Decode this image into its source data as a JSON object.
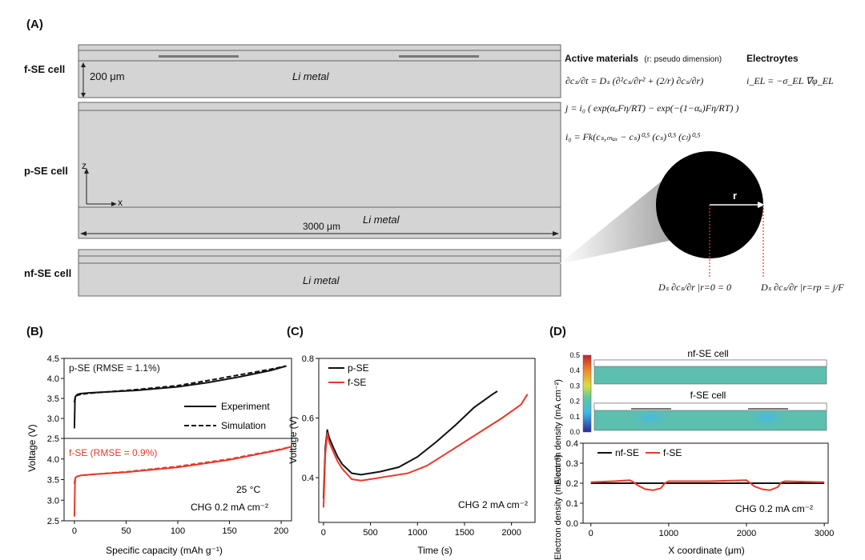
{
  "panel_a": {
    "letter": "(A)",
    "cells": {
      "f_se": "f-SE cell",
      "p_se": "p-SE cell",
      "nf_se": "nf-SE cell"
    },
    "li_metal": "Li metal",
    "dim_200": "200 μm",
    "dim_3000": "3000 μm",
    "axis_z": "z",
    "axis_x": "x",
    "active_materials_title": "Active materials",
    "active_materials_note": "(r: pseudo dimension)",
    "electrolytes_title": "Electroytes",
    "eq_diffusion": "∂cₛ/∂t = Dₛ (∂²cₛ/∂r² + (2/r) ∂cₛ/∂r)",
    "eq_butler_volmer": "j = i₀ ( exp(αₐFη/RT) − exp(−(1−αₐ)Fη/RT) )",
    "eq_exchange_current": "i₀ = Fk(cₛ,ₘₐₓ − cₛ)⁰·⁵ (cₛ)⁰·⁵ (cₗ)⁰·⁵",
    "eq_electrolyte": "i_EL = −σ_EL ∇φ_EL",
    "particle_radius": "r",
    "bc_center": "Dₛ ∂cₛ/∂r |r=0 = 0",
    "bc_surface": "Dₛ ∂cₛ/∂r |r=rp = j/F"
  },
  "panel_b": {
    "letter": "(B)",
    "ylabel": "Voltage (V)",
    "xlabel": "Specific capacity (mAh g⁻¹)",
    "top_label": "p-SE (RMSE = 1.1%)",
    "bottom_label": "f-SE (RMSE = 0.9%)",
    "legend_experiment": "Experiment",
    "legend_simulation": "Simulation",
    "temp": "25 °C",
    "condition": "CHG 0.2 mA cm⁻²",
    "colors": {
      "p_se": "#111111",
      "f_se": "#e8392b"
    }
  },
  "panel_c": {
    "letter": "(C)",
    "ylabel": "Voltage (V)",
    "xlabel": "Time (s)",
    "legend_p": "p-SE",
    "legend_f": "f-SE",
    "condition": "CHG 2 mA cm⁻²"
  },
  "panel_d": {
    "letter": "(D)",
    "map_top_label": "nf-SE cell",
    "map_bottom_label": "f-SE cell",
    "colorbar_label": "Electron density (mA cm⁻²)",
    "ylabel": "Electron density (mA cm⁻²)",
    "xlabel": "X coordinate (μm)",
    "legend_nf": "nf-SE",
    "legend_f": "f-SE",
    "condition": "CHG 0.2 mA cm⁻²"
  },
  "chart_data": [
    {
      "id": "B-top",
      "type": "line",
      "xlim": [
        -10,
        210
      ],
      "ylim": [
        2.5,
        4.5
      ],
      "xticks": [
        0,
        50,
        100,
        150,
        200
      ],
      "yticks": [
        2.5,
        3.0,
        3.5,
        4.0,
        4.5
      ],
      "series": [
        {
          "name": "Experiment",
          "style": "solid",
          "color": "#111111",
          "x": [
            0,
            0.5,
            1,
            3,
            6,
            15,
            30,
            60,
            100,
            130,
            160,
            190,
            205
          ],
          "y": [
            2.75,
            3.45,
            3.55,
            3.6,
            3.62,
            3.64,
            3.66,
            3.7,
            3.79,
            3.9,
            4.04,
            4.2,
            4.31
          ]
        },
        {
          "name": "Simulation",
          "style": "dashed",
          "color": "#111111",
          "x": [
            0,
            0.5,
            1,
            3,
            6,
            15,
            30,
            60,
            100,
            130,
            160,
            190,
            205
          ],
          "y": [
            3.4,
            3.5,
            3.55,
            3.58,
            3.6,
            3.63,
            3.66,
            3.72,
            3.82,
            3.95,
            4.09,
            4.23,
            4.31
          ]
        }
      ]
    },
    {
      "id": "B-bottom",
      "type": "line",
      "xlim": [
        -10,
        210
      ],
      "ylim": [
        2.5,
        4.5
      ],
      "xticks": [
        0,
        50,
        100,
        150,
        200
      ],
      "xticklabels": [
        "0",
        "50",
        "100",
        "150",
        "200"
      ],
      "yticks": [
        2.5,
        3.0,
        3.5,
        4.0,
        4.5
      ],
      "series": [
        {
          "name": "Experiment",
          "style": "solid",
          "color": "#e8392b",
          "x": [
            0,
            0.5,
            1,
            3,
            6,
            20,
            50,
            100,
            150,
            200,
            210
          ],
          "y": [
            2.6,
            3.4,
            3.55,
            3.58,
            3.6,
            3.63,
            3.68,
            3.8,
            3.98,
            4.23,
            4.3
          ]
        },
        {
          "name": "Simulation",
          "style": "dashed",
          "color": "#e8392b",
          "x": [
            0,
            0.5,
            1,
            3,
            6,
            20,
            50,
            100,
            150,
            200,
            210
          ],
          "y": [
            3.4,
            3.5,
            3.55,
            3.58,
            3.6,
            3.63,
            3.69,
            3.82,
            4.0,
            4.24,
            4.3
          ]
        }
      ]
    },
    {
      "id": "C",
      "type": "line",
      "xlim": [
        -50,
        2250
      ],
      "ylim": [
        0.25,
        0.8
      ],
      "xticks": [
        0,
        500,
        1000,
        1500,
        2000
      ],
      "yticks": [
        0.4,
        0.6,
        0.8
      ],
      "series": [
        {
          "name": "p-SE",
          "color": "#111111",
          "x": [
            0,
            20,
            40,
            60,
            100,
            150,
            200,
            300,
            400,
            500,
            600,
            800,
            1000,
            1200,
            1400,
            1600,
            1800,
            1850
          ],
          "y": [
            0.33,
            0.5,
            0.56,
            0.535,
            0.505,
            0.47,
            0.445,
            0.415,
            0.41,
            0.415,
            0.42,
            0.435,
            0.47,
            0.52,
            0.575,
            0.635,
            0.68,
            0.69
          ]
        },
        {
          "name": "f-SE",
          "color": "#e8392b",
          "x": [
            0,
            20,
            40,
            60,
            100,
            150,
            200,
            300,
            400,
            500,
            700,
            900,
            1100,
            1300,
            1500,
            1700,
            1900,
            2100,
            2170
          ],
          "y": [
            0.3,
            0.48,
            0.55,
            0.52,
            0.49,
            0.455,
            0.43,
            0.395,
            0.39,
            0.395,
            0.405,
            0.415,
            0.44,
            0.48,
            0.52,
            0.56,
            0.6,
            0.645,
            0.68
          ]
        }
      ]
    },
    {
      "id": "D-line",
      "type": "line",
      "xlim": [
        -100,
        3050
      ],
      "ylim": [
        0,
        0.4
      ],
      "xticks": [
        0,
        1000,
        2000,
        3000
      ],
      "yticks": [
        0,
        0.1,
        0.2,
        0.3,
        0.4
      ],
      "series": [
        {
          "name": "nf-SE",
          "color": "#111111",
          "x": [
            0,
            3000
          ],
          "y": [
            0.2,
            0.2
          ]
        },
        {
          "name": "f-SE",
          "color": "#e8392b",
          "x": [
            0,
            300,
            500,
            550,
            600,
            700,
            800,
            900,
            950,
            1000,
            1500,
            2000,
            2050,
            2100,
            2200,
            2300,
            2400,
            2450,
            2500,
            3000
          ],
          "y": [
            0.205,
            0.21,
            0.215,
            0.205,
            0.19,
            0.17,
            0.165,
            0.175,
            0.2,
            0.21,
            0.21,
            0.215,
            0.2,
            0.185,
            0.17,
            0.165,
            0.18,
            0.205,
            0.21,
            0.205
          ]
        }
      ]
    },
    {
      "id": "D-colorbar",
      "type": "heatmap",
      "ylim": [
        0,
        0.5
      ],
      "ticks": [
        0,
        0.1,
        0.2,
        0.3,
        0.4,
        0.5
      ]
    }
  ]
}
